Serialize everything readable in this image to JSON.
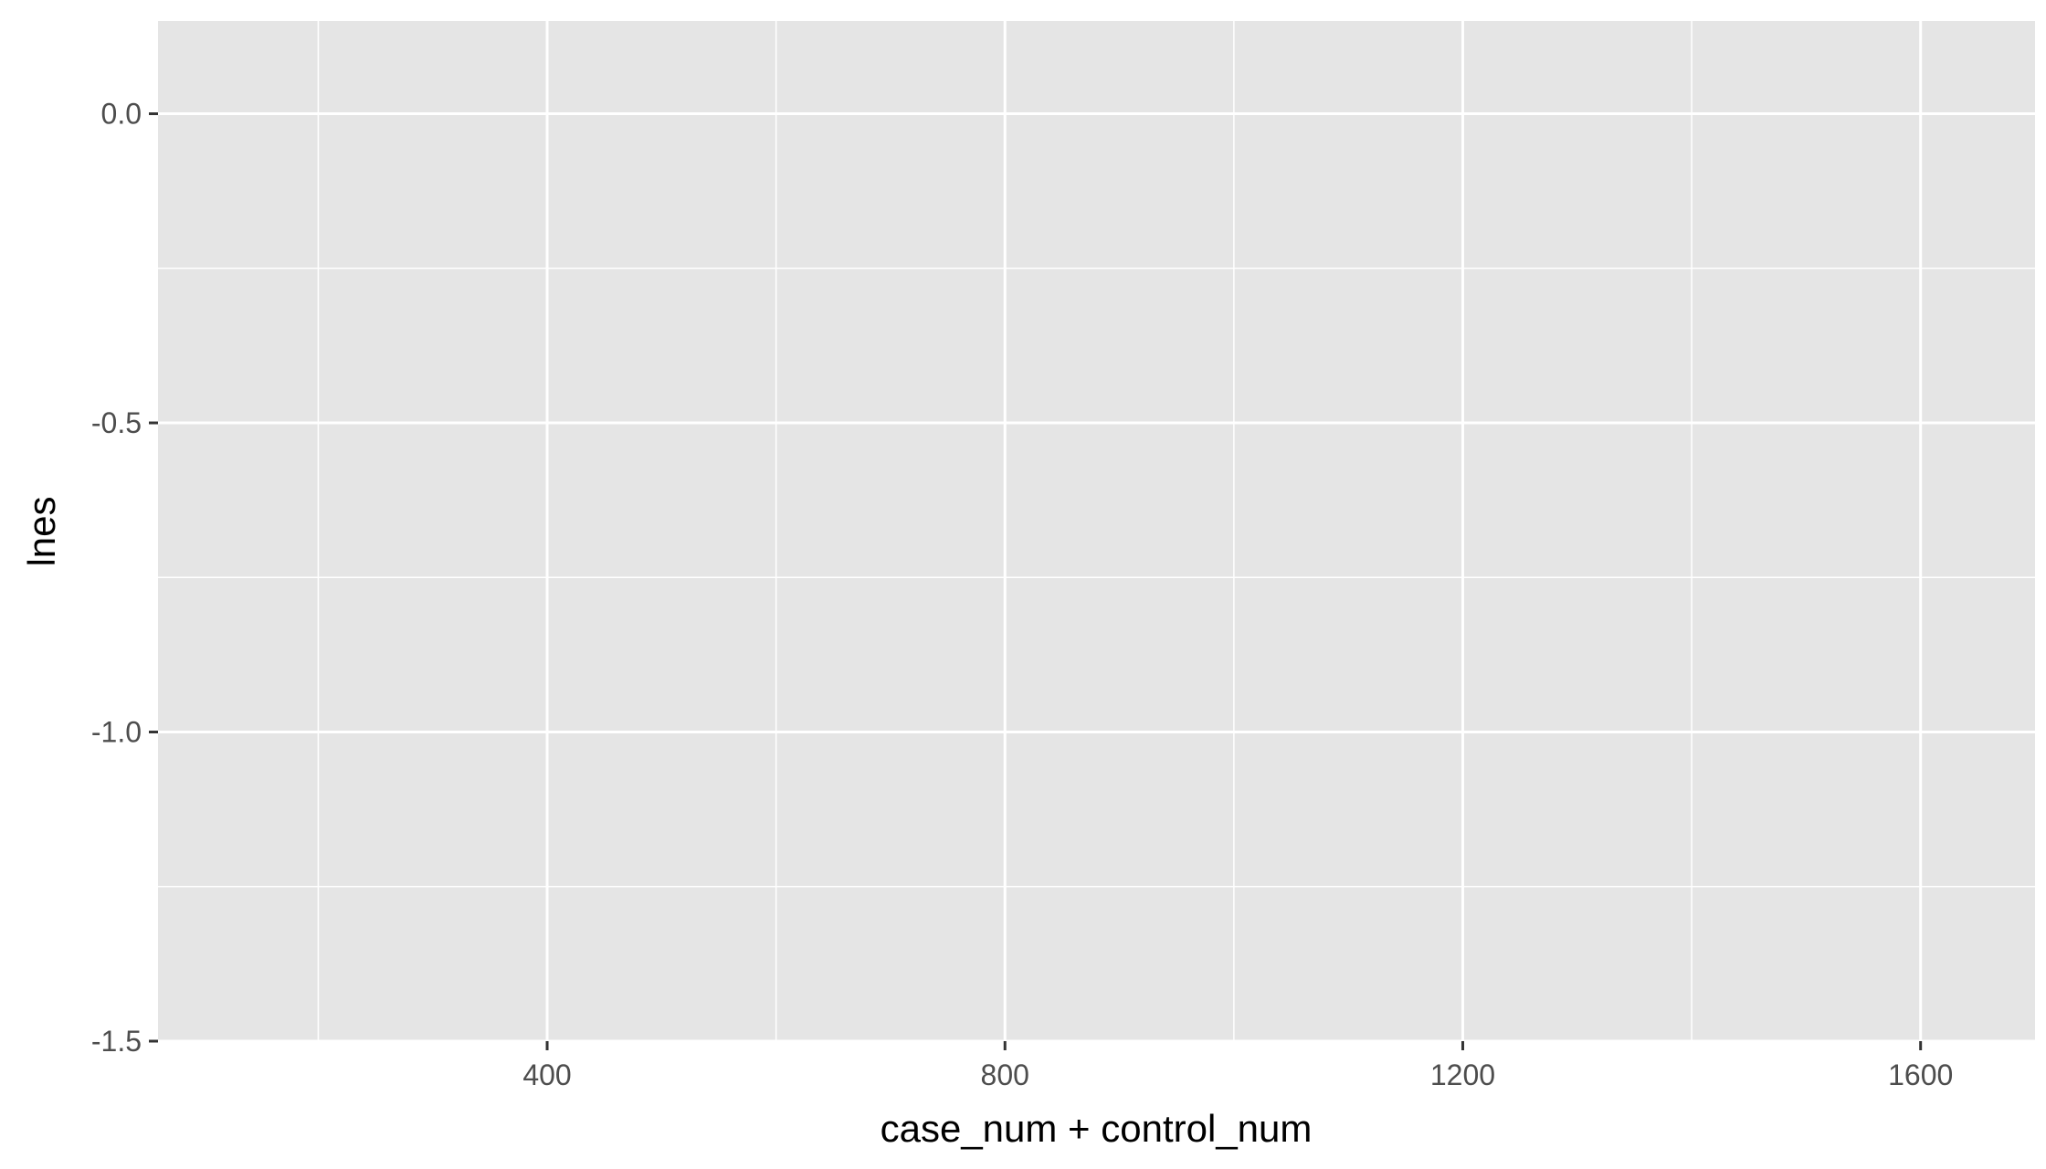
{
  "chart_data": {
    "type": "scatter",
    "title": "",
    "xlabel": "case_num + control_num",
    "ylabel": "lnes",
    "xlim": [
      60,
      1700
    ],
    "ylim": [
      -1.5,
      0.15
    ],
    "x_ticks": [
      400,
      800,
      1200,
      1600
    ],
    "x_tick_labels": [
      "400",
      "800",
      "1200",
      "1600"
    ],
    "x_minor_ticks": [
      200,
      600,
      1000,
      1400
    ],
    "y_ticks": [
      0.0,
      -0.5,
      -1.0,
      -1.5
    ],
    "y_tick_labels": [
      "0.0",
      "-0.5",
      "-1.0",
      "-1.5"
    ],
    "y_minor_ticks": [
      -0.25,
      -0.75,
      -1.25
    ],
    "grid": true,
    "series": [],
    "colors": {
      "panel": "#e5e5e5",
      "grid": "#ffffff",
      "tick": "#333333",
      "tick_text": "#4d4d4d"
    }
  }
}
